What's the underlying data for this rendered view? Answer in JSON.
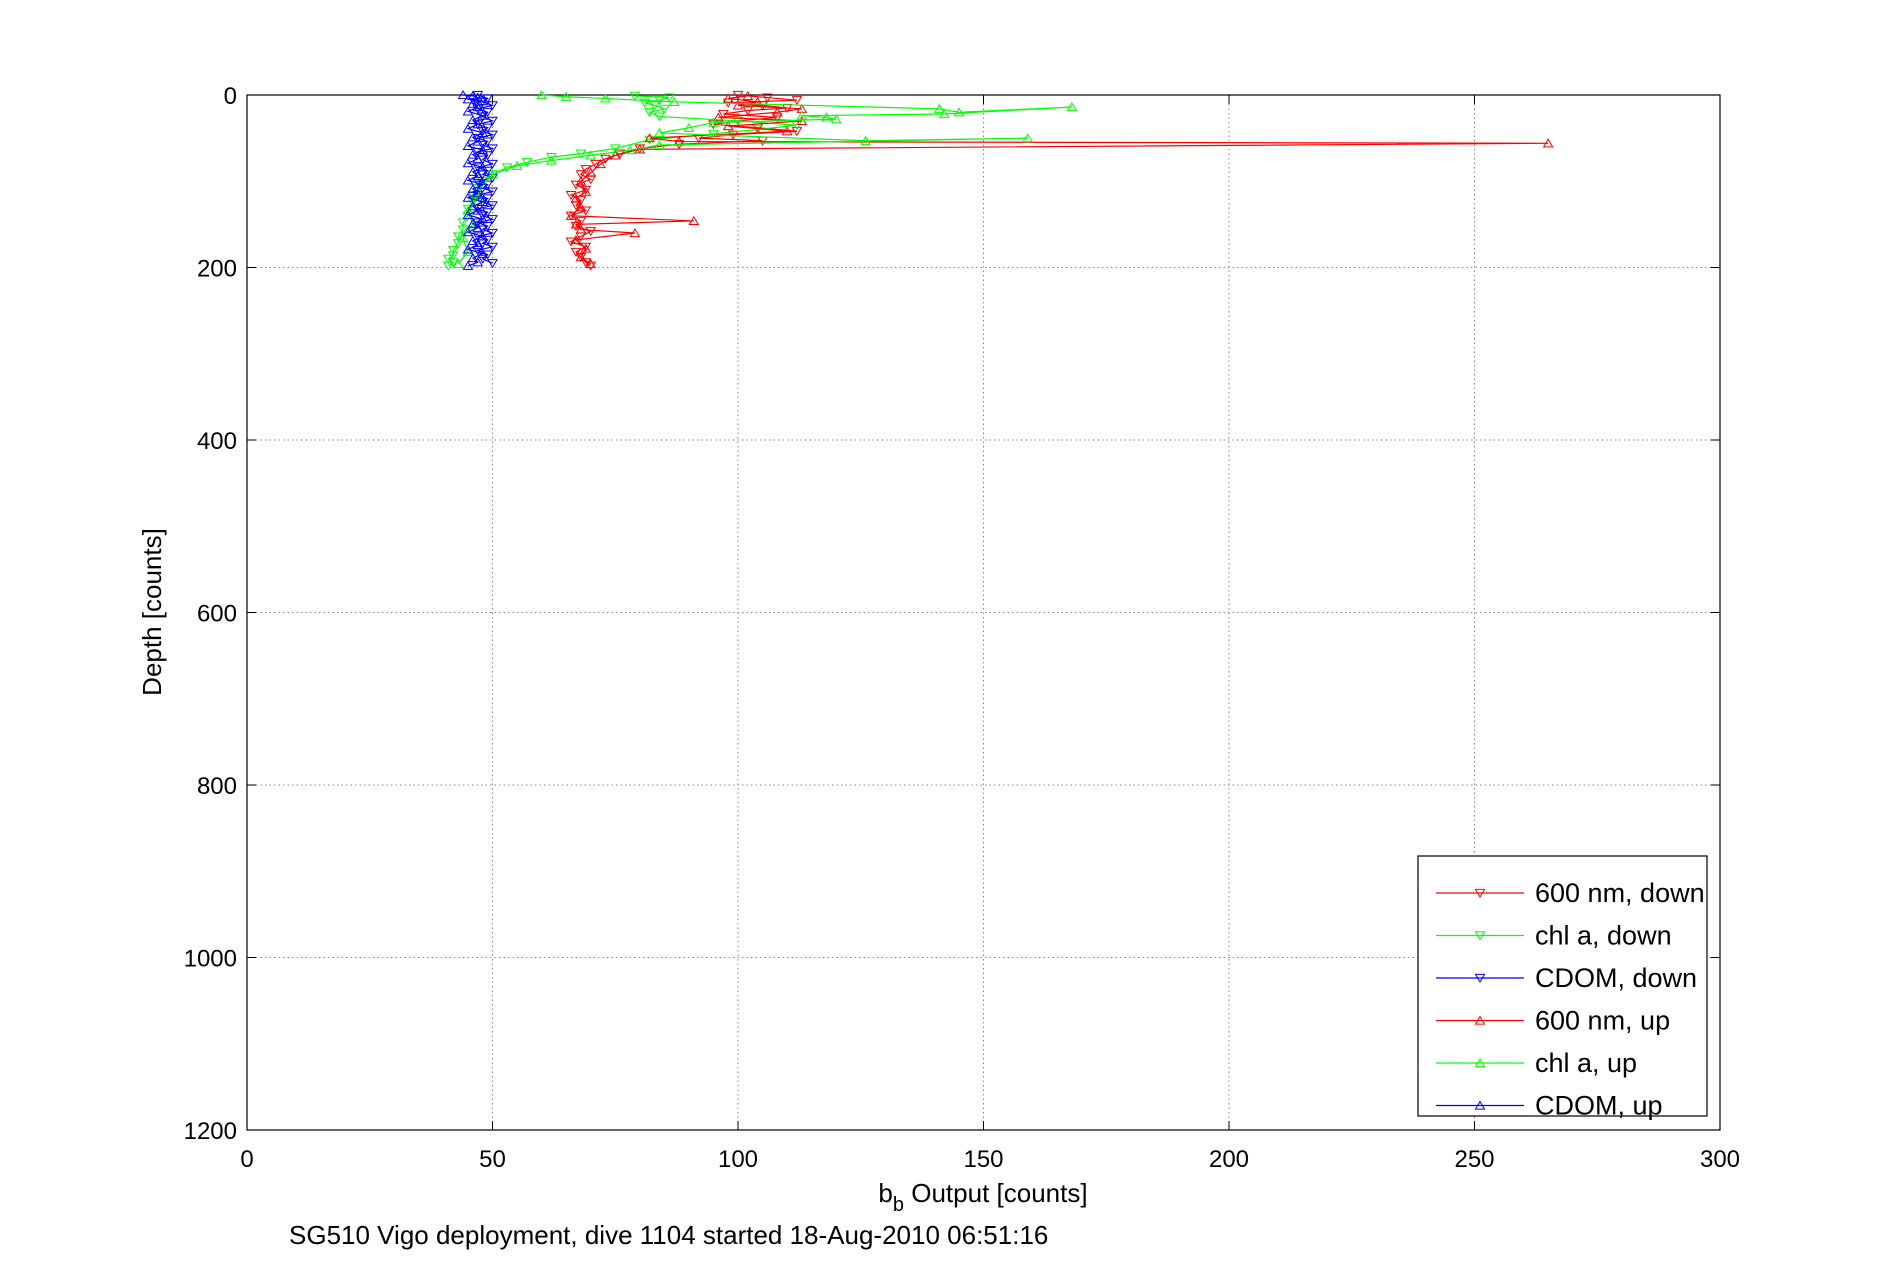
{
  "chart_data": {
    "type": "line",
    "title": "",
    "xlabel_main": "b",
    "xlabel_sub": "b",
    "xlabel_rest": " Output [counts]",
    "ylabel": "Depth [counts]",
    "caption": "SG510 Vigo deployment, dive 1104 started 18-Aug-2010 06:51:16",
    "xlim": [
      0,
      300
    ],
    "ylim": [
      0,
      1200
    ],
    "y_reversed": true,
    "grid": true,
    "legend_position": "bottom-right",
    "xticks": [
      0,
      50,
      100,
      150,
      200,
      250,
      300
    ],
    "xtick_labels": [
      "0",
      "50",
      "100",
      "150",
      "200",
      "250",
      "300"
    ],
    "yticks": [
      0,
      200,
      400,
      600,
      800,
      1000,
      1200
    ],
    "ytick_labels": [
      "0",
      "200",
      "400",
      "600",
      "800",
      "1000",
      "1200"
    ],
    "series": [
      {
        "name": "600 nm, down",
        "color": "#ff0000",
        "marker": "triangle-down",
        "x": [
          100,
          106,
          112,
          98,
          105,
          110,
          102,
          97,
          108,
          100,
          95,
          104,
          112,
          99,
          92,
          105,
          88,
          80,
          76,
          73,
          71,
          69,
          68,
          70,
          67,
          69,
          66,
          68,
          67,
          69,
          66,
          68,
          67,
          70,
          68,
          66,
          69,
          67,
          68,
          69,
          70
        ],
        "y": [
          0,
          3,
          6,
          9,
          12,
          15,
          18,
          22,
          26,
          30,
          34,
          38,
          42,
          46,
          50,
          53,
          57,
          62,
          68,
          74,
          80,
          86,
          92,
          98,
          104,
          110,
          116,
          122,
          128,
          134,
          140,
          146,
          152,
          158,
          164,
          170,
          176,
          182,
          188,
          194,
          198
        ]
      },
      {
        "name": "chl a, down",
        "color": "#00ff00",
        "marker": "triangle-down",
        "x": [
          79,
          86,
          84,
          81,
          83,
          85,
          82,
          84,
          100,
          112,
          104,
          95,
          82,
          75,
          68,
          62,
          57,
          53,
          50,
          48,
          47,
          46,
          46,
          45,
          45,
          44,
          44,
          43,
          43,
          42,
          42,
          41,
          42,
          41
        ],
        "y": [
          1,
          3,
          6,
          9,
          12,
          16,
          20,
          25,
          30,
          35,
          40,
          45,
          52,
          62,
          68,
          72,
          78,
          84,
          92,
          100,
          108,
          116,
          124,
          132,
          140,
          148,
          156,
          164,
          172,
          180,
          186,
          190,
          194,
          198
        ]
      },
      {
        "name": "CDOM, down",
        "color": "#0000ff",
        "marker": "triangle-down",
        "x": [
          47,
          49,
          48,
          50,
          47,
          49,
          48,
          50,
          47,
          49,
          48,
          50,
          47,
          49,
          48,
          50,
          47,
          49,
          48,
          50,
          47,
          49,
          48,
          50,
          47,
          49,
          48,
          50,
          47,
          49,
          48,
          50,
          47,
          49,
          48,
          50,
          47,
          49,
          48,
          50,
          47,
          49,
          48,
          50,
          47,
          49,
          48,
          50
        ],
        "y": [
          0,
          4,
          8,
          12,
          16,
          20,
          25,
          30,
          34,
          38,
          42,
          46,
          50,
          54,
          58,
          62,
          66,
          70,
          75,
          80,
          84,
          88,
          92,
          96,
          100,
          104,
          108,
          112,
          116,
          120,
          124,
          128,
          132,
          136,
          140,
          144,
          148,
          152,
          156,
          160,
          164,
          168,
          172,
          176,
          180,
          185,
          190,
          195
        ]
      },
      {
        "name": "600 nm, up",
        "color": "#ff0000",
        "marker": "triangle-up",
        "x": [
          70,
          68,
          69,
          67,
          79,
          68,
          67,
          91,
          66,
          68,
          67,
          69,
          68,
          70,
          72,
          75,
          80,
          265,
          88,
          82,
          110,
          98,
          113,
          96,
          108,
          113,
          100,
          104,
          98,
          102
        ],
        "y": [
          196,
          188,
          178,
          168,
          160,
          156,
          150,
          146,
          140,
          130,
          120,
          112,
          100,
          90,
          80,
          70,
          63,
          56,
          54,
          50,
          42,
          36,
          30,
          26,
          20,
          16,
          12,
          8,
          4,
          1
        ]
      },
      {
        "name": "chl a, up",
        "color": "#00ff00",
        "marker": "triangle-up",
        "x": [
          43,
          45,
          44,
          46,
          45,
          47,
          48,
          50,
          55,
          62,
          70,
          78,
          84,
          159,
          126,
          84,
          90,
          95,
          120,
          118,
          113,
          142,
          168,
          145,
          141,
          87,
          73,
          65,
          60
        ],
        "y": [
          196,
          182,
          166,
          150,
          134,
          118,
          104,
          92,
          82,
          76,
          70,
          64,
          58,
          50,
          53,
          44,
          38,
          32,
          28,
          26,
          24,
          22,
          14,
          20,
          16,
          8,
          4,
          2,
          0
        ]
      },
      {
        "name": "CDOM, up",
        "color": "#0000ff",
        "marker": "triangle-up",
        "x": [
          45,
          47,
          46,
          48,
          45,
          47,
          46,
          48,
          45,
          47,
          46,
          48,
          45,
          47,
          46,
          48,
          45,
          47,
          46,
          48,
          45,
          47,
          46,
          48,
          45,
          47,
          46,
          48,
          45,
          47,
          46,
          48,
          45,
          47,
          46,
          48,
          45,
          47,
          46,
          48,
          45,
          47,
          46,
          44
        ],
        "y": [
          198,
          194,
          189,
          184,
          179,
          174,
          169,
          164,
          159,
          154,
          149,
          144,
          139,
          134,
          129,
          124,
          119,
          114,
          109,
          104,
          99,
          94,
          89,
          84,
          79,
          74,
          69,
          64,
          59,
          54,
          49,
          44,
          39,
          34,
          29,
          24,
          19,
          14,
          10,
          7,
          5,
          3,
          1,
          0
        ]
      }
    ]
  }
}
